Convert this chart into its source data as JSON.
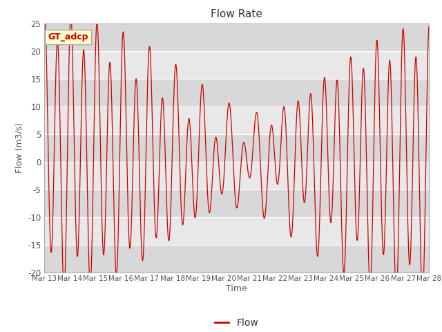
{
  "title": "Flow Rate",
  "xlabel": "Time",
  "ylabel": "Flow (m3/s)",
  "ylim": [
    -20,
    25
  ],
  "legend_label": "Flow",
  "annotation_text": "GT_adcp",
  "line_color": "#cc0000",
  "background_color": "#ffffff",
  "plot_bg_color": "#e0e0e0",
  "band_light": "#e8e8e8",
  "band_dark": "#d0d0d0",
  "grid_color": "#ffffff",
  "start_day": 13,
  "end_day": 28,
  "num_points": 2000,
  "annotation_bg": "#ffffcc",
  "annotation_border": "#cccc00",
  "yticks": [
    -20,
    -15,
    -10,
    -5,
    0,
    5,
    10,
    15,
    20,
    25
  ]
}
